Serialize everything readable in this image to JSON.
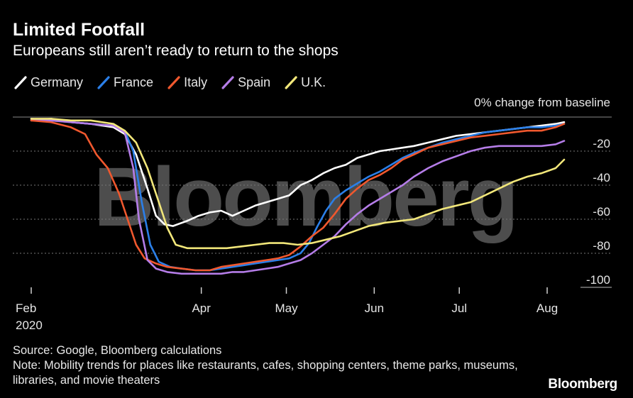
{
  "header": {
    "title": "Limited Footfall",
    "subtitle": "Europeans still aren’t ready to return to the shops"
  },
  "footer": {
    "source": "Source: Google, Bloomberg calculations",
    "note": "Note: Mobility trends for places like restaurants, cafes, shopping centers, theme parks, museums, libraries, and movie theaters",
    "brand": "Bloomberg"
  },
  "watermark": "Bloomberg",
  "chart_data": {
    "type": "line",
    "ylabel": "0% change from baseline",
    "ylim": [
      -100,
      0
    ],
    "yticks": [
      -20,
      -40,
      -60,
      -80,
      -100
    ],
    "xlim": [
      "2020-02-01",
      "2020-08-07"
    ],
    "xticks": [
      {
        "date": "2020-02-01",
        "label": "Feb",
        "sublabel": "2020"
      },
      {
        "date": "2020-04-01",
        "label": "Apr",
        "sublabel": ""
      },
      {
        "date": "2020-05-01",
        "label": "May",
        "sublabel": ""
      },
      {
        "date": "2020-06-01",
        "label": "Jun",
        "sublabel": ""
      },
      {
        "date": "2020-07-01",
        "label": "Jul",
        "sublabel": ""
      },
      {
        "date": "2020-08-01",
        "label": "Aug",
        "sublabel": ""
      }
    ],
    "grid": true,
    "legend": "top-left",
    "series": [
      {
        "name": "Germany",
        "color": "#ffffff",
        "points": [
          [
            "2020-02-01",
            -2
          ],
          [
            "2020-02-08",
            -1
          ],
          [
            "2020-02-15",
            -3
          ],
          [
            "2020-02-22",
            -4
          ],
          [
            "2020-03-01",
            -6
          ],
          [
            "2020-03-05",
            -10
          ],
          [
            "2020-03-09",
            -22
          ],
          [
            "2020-03-13",
            -42
          ],
          [
            "2020-03-16",
            -58
          ],
          [
            "2020-03-19",
            -63
          ],
          [
            "2020-03-22",
            -64
          ],
          [
            "2020-03-27",
            -61
          ],
          [
            "2020-03-31",
            -58
          ],
          [
            "2020-04-04",
            -56
          ],
          [
            "2020-04-08",
            -55
          ],
          [
            "2020-04-12",
            -58
          ],
          [
            "2020-04-16",
            -55
          ],
          [
            "2020-04-20",
            -52
          ],
          [
            "2020-04-24",
            -50
          ],
          [
            "2020-04-28",
            -48
          ],
          [
            "2020-05-02",
            -46
          ],
          [
            "2020-05-06",
            -40
          ],
          [
            "2020-05-10",
            -37
          ],
          [
            "2020-05-14",
            -33
          ],
          [
            "2020-05-18",
            -30
          ],
          [
            "2020-05-22",
            -28
          ],
          [
            "2020-05-26",
            -24
          ],
          [
            "2020-05-30",
            -22
          ],
          [
            "2020-06-03",
            -20
          ],
          [
            "2020-06-07",
            -19
          ],
          [
            "2020-06-11",
            -18
          ],
          [
            "2020-06-15",
            -17
          ],
          [
            "2020-06-20",
            -15
          ],
          [
            "2020-06-25",
            -13
          ],
          [
            "2020-06-30",
            -11
          ],
          [
            "2020-07-05",
            -10
          ],
          [
            "2020-07-10",
            -9
          ],
          [
            "2020-07-15",
            -8
          ],
          [
            "2020-07-20",
            -7
          ],
          [
            "2020-07-25",
            -6
          ],
          [
            "2020-07-30",
            -5
          ],
          [
            "2020-08-04",
            -4
          ],
          [
            "2020-08-07",
            -3
          ]
        ]
      },
      {
        "name": "France",
        "color": "#2b7fe8",
        "points": [
          [
            "2020-02-01",
            -1
          ],
          [
            "2020-02-08",
            -2
          ],
          [
            "2020-02-15",
            -3
          ],
          [
            "2020-02-22",
            -4
          ],
          [
            "2020-03-01",
            -5
          ],
          [
            "2020-03-05",
            -8
          ],
          [
            "2020-03-08",
            -20
          ],
          [
            "2020-03-11",
            -50
          ],
          [
            "2020-03-14",
            -75
          ],
          [
            "2020-03-17",
            -85
          ],
          [
            "2020-03-21",
            -88
          ],
          [
            "2020-03-25",
            -89
          ],
          [
            "2020-03-30",
            -90
          ],
          [
            "2020-04-04",
            -90
          ],
          [
            "2020-04-08",
            -89
          ],
          [
            "2020-04-12",
            -88
          ],
          [
            "2020-04-16",
            -87
          ],
          [
            "2020-04-20",
            -86
          ],
          [
            "2020-04-24",
            -85
          ],
          [
            "2020-04-28",
            -84
          ],
          [
            "2020-05-02",
            -83
          ],
          [
            "2020-05-06",
            -80
          ],
          [
            "2020-05-09",
            -74
          ],
          [
            "2020-05-12",
            -64
          ],
          [
            "2020-05-15",
            -55
          ],
          [
            "2020-05-18",
            -48
          ],
          [
            "2020-05-22",
            -43
          ],
          [
            "2020-05-26",
            -39
          ],
          [
            "2020-05-30",
            -35
          ],
          [
            "2020-06-03",
            -32
          ],
          [
            "2020-06-07",
            -28
          ],
          [
            "2020-06-11",
            -24
          ],
          [
            "2020-06-15",
            -21
          ],
          [
            "2020-06-20",
            -18
          ],
          [
            "2020-06-25",
            -15
          ],
          [
            "2020-06-30",
            -13
          ],
          [
            "2020-07-05",
            -11
          ],
          [
            "2020-07-10",
            -9
          ],
          [
            "2020-07-15",
            -8
          ],
          [
            "2020-07-20",
            -7
          ],
          [
            "2020-07-25",
            -6
          ],
          [
            "2020-07-30",
            -6
          ],
          [
            "2020-08-04",
            -5
          ],
          [
            "2020-08-07",
            -4
          ]
        ]
      },
      {
        "name": "Italy",
        "color": "#f0582e",
        "points": [
          [
            "2020-02-01",
            -2
          ],
          [
            "2020-02-08",
            -3
          ],
          [
            "2020-02-15",
            -6
          ],
          [
            "2020-02-20",
            -10
          ],
          [
            "2020-02-24",
            -22
          ],
          [
            "2020-02-28",
            -30
          ],
          [
            "2020-03-03",
            -45
          ],
          [
            "2020-03-06",
            -60
          ],
          [
            "2020-03-09",
            -75
          ],
          [
            "2020-03-12",
            -83
          ],
          [
            "2020-03-16",
            -86
          ],
          [
            "2020-03-20",
            -88
          ],
          [
            "2020-03-25",
            -89
          ],
          [
            "2020-03-30",
            -90
          ],
          [
            "2020-04-04",
            -90
          ],
          [
            "2020-04-08",
            -88
          ],
          [
            "2020-04-12",
            -87
          ],
          [
            "2020-04-16",
            -86
          ],
          [
            "2020-04-20",
            -85
          ],
          [
            "2020-04-24",
            -84
          ],
          [
            "2020-04-28",
            -83
          ],
          [
            "2020-05-02",
            -81
          ],
          [
            "2020-05-06",
            -76
          ],
          [
            "2020-05-10",
            -70
          ],
          [
            "2020-05-14",
            -65
          ],
          [
            "2020-05-18",
            -57
          ],
          [
            "2020-05-22",
            -48
          ],
          [
            "2020-05-26",
            -42
          ],
          [
            "2020-05-30",
            -37
          ],
          [
            "2020-06-03",
            -34
          ],
          [
            "2020-06-07",
            -30
          ],
          [
            "2020-06-11",
            -25
          ],
          [
            "2020-06-15",
            -22
          ],
          [
            "2020-06-20",
            -18
          ],
          [
            "2020-06-25",
            -16
          ],
          [
            "2020-06-30",
            -14
          ],
          [
            "2020-07-05",
            -12
          ],
          [
            "2020-07-10",
            -11
          ],
          [
            "2020-07-15",
            -10
          ],
          [
            "2020-07-20",
            -9
          ],
          [
            "2020-07-25",
            -8
          ],
          [
            "2020-07-30",
            -8
          ],
          [
            "2020-08-04",
            -6
          ],
          [
            "2020-08-07",
            -4
          ]
        ]
      },
      {
        "name": "Spain",
        "color": "#b57de8",
        "points": [
          [
            "2020-02-01",
            -1
          ],
          [
            "2020-02-08",
            -2
          ],
          [
            "2020-02-15",
            -3
          ],
          [
            "2020-02-22",
            -4
          ],
          [
            "2020-03-01",
            -5
          ],
          [
            "2020-03-05",
            -9
          ],
          [
            "2020-03-08",
            -30
          ],
          [
            "2020-03-10",
            -60
          ],
          [
            "2020-03-13",
            -84
          ],
          [
            "2020-03-16",
            -89
          ],
          [
            "2020-03-20",
            -91
          ],
          [
            "2020-03-25",
            -92
          ],
          [
            "2020-03-30",
            -92
          ],
          [
            "2020-04-04",
            -92
          ],
          [
            "2020-04-08",
            -92
          ],
          [
            "2020-04-12",
            -91
          ],
          [
            "2020-04-16",
            -91
          ],
          [
            "2020-04-20",
            -90
          ],
          [
            "2020-04-24",
            -89
          ],
          [
            "2020-04-28",
            -88
          ],
          [
            "2020-05-02",
            -86
          ],
          [
            "2020-05-06",
            -84
          ],
          [
            "2020-05-10",
            -80
          ],
          [
            "2020-05-14",
            -75
          ],
          [
            "2020-05-18",
            -70
          ],
          [
            "2020-05-22",
            -63
          ],
          [
            "2020-05-26",
            -57
          ],
          [
            "2020-05-30",
            -52
          ],
          [
            "2020-06-03",
            -48
          ],
          [
            "2020-06-07",
            -44
          ],
          [
            "2020-06-11",
            -40
          ],
          [
            "2020-06-15",
            -35
          ],
          [
            "2020-06-20",
            -30
          ],
          [
            "2020-06-25",
            -26
          ],
          [
            "2020-06-30",
            -23
          ],
          [
            "2020-07-05",
            -20
          ],
          [
            "2020-07-10",
            -18
          ],
          [
            "2020-07-15",
            -17
          ],
          [
            "2020-07-20",
            -17
          ],
          [
            "2020-07-25",
            -17
          ],
          [
            "2020-07-30",
            -17
          ],
          [
            "2020-08-04",
            -16
          ],
          [
            "2020-08-07",
            -14
          ]
        ]
      },
      {
        "name": "U.K.",
        "color": "#f2e77a",
        "points": [
          [
            "2020-02-01",
            -1
          ],
          [
            "2020-02-08",
            -1
          ],
          [
            "2020-02-15",
            -2
          ],
          [
            "2020-02-22",
            -2
          ],
          [
            "2020-03-01",
            -4
          ],
          [
            "2020-03-05",
            -8
          ],
          [
            "2020-03-09",
            -15
          ],
          [
            "2020-03-13",
            -30
          ],
          [
            "2020-03-17",
            -50
          ],
          [
            "2020-03-20",
            -65
          ],
          [
            "2020-03-23",
            -75
          ],
          [
            "2020-03-27",
            -77
          ],
          [
            "2020-03-31",
            -77
          ],
          [
            "2020-04-05",
            -77
          ],
          [
            "2020-04-10",
            -77
          ],
          [
            "2020-04-15",
            -76
          ],
          [
            "2020-04-20",
            -75
          ],
          [
            "2020-04-25",
            -74
          ],
          [
            "2020-04-30",
            -74
          ],
          [
            "2020-05-05",
            -75
          ],
          [
            "2020-05-10",
            -74
          ],
          [
            "2020-05-15",
            -72
          ],
          [
            "2020-05-20",
            -70
          ],
          [
            "2020-05-25",
            -67
          ],
          [
            "2020-05-30",
            -64
          ],
          [
            "2020-06-05",
            -62
          ],
          [
            "2020-06-10",
            -61
          ],
          [
            "2020-06-15",
            -60
          ],
          [
            "2020-06-20",
            -57
          ],
          [
            "2020-06-25",
            -54
          ],
          [
            "2020-06-30",
            -52
          ],
          [
            "2020-07-05",
            -50
          ],
          [
            "2020-07-10",
            -46
          ],
          [
            "2020-07-15",
            -42
          ],
          [
            "2020-07-20",
            -38
          ],
          [
            "2020-07-25",
            -35
          ],
          [
            "2020-07-30",
            -33
          ],
          [
            "2020-08-04",
            -30
          ],
          [
            "2020-08-07",
            -25
          ]
        ]
      }
    ]
  }
}
